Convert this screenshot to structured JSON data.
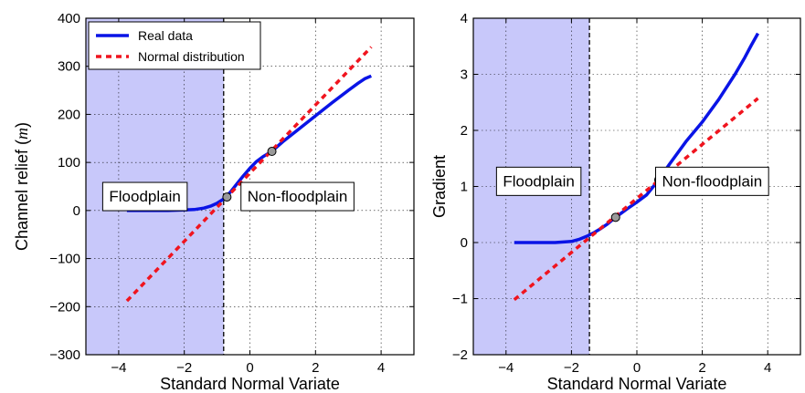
{
  "chart_data": [
    {
      "type": "line",
      "xlabel": "Standard Normal Variate",
      "ylabel": "Channel relief (m)",
      "ylabel_prefix": "Channel relief (",
      "ylabel_var": "m",
      "ylabel_suffix": ")",
      "xlim": [
        -5,
        5
      ],
      "ylim": [
        -300,
        400
      ],
      "xticks": [
        -4,
        -2,
        0,
        2,
        4
      ],
      "xtick_labels": [
        "−4",
        "−2",
        "0",
        "2",
        "4"
      ],
      "yticks": [
        -300,
        -200,
        -100,
        0,
        100,
        200,
        300,
        400
      ],
      "ytick_labels": [
        "−300",
        "−200",
        "−100",
        "0",
        "100",
        "200",
        "300",
        "400"
      ],
      "grid": true,
      "legend_placement": "top-left",
      "threshold_x": -0.8,
      "shaded_region": {
        "from": -5,
        "to": -0.8,
        "color": "#c8c8fa"
      },
      "regions": [
        {
          "label": "Floodplain",
          "x": -3.2,
          "y": 30
        },
        {
          "label": "Non-floodplain",
          "x": 1.45,
          "y": 30
        }
      ],
      "series": [
        {
          "name": "Real data",
          "style": "solid",
          "color": "#0a14e6",
          "x": [
            -3.75,
            -3.0,
            -2.5,
            -2.0,
            -1.7,
            -1.4,
            -1.2,
            -1.0,
            -0.8,
            -0.6,
            -0.4,
            -0.2,
            0.0,
            0.2,
            0.4,
            0.65,
            1.0,
            1.5,
            2.0,
            2.5,
            3.0,
            3.3,
            3.5,
            3.7
          ],
          "y": [
            0,
            0,
            0,
            1,
            2,
            5,
            9,
            15,
            24,
            38,
            55,
            72,
            88,
            102,
            112,
            122,
            143,
            170,
            197,
            224,
            250,
            265,
            274,
            280
          ]
        },
        {
          "name": "Normal distribution",
          "style": "dashed",
          "color": "#f0141e",
          "x": [
            -3.75,
            3.7
          ],
          "y": [
            -188,
            340
          ]
        }
      ],
      "markers": [
        {
          "x": -0.7,
          "y": 28
        },
        {
          "x": 0.67,
          "y": 123
        }
      ]
    },
    {
      "type": "line",
      "xlabel": "Standard Normal Variate",
      "ylabel": "Gradient",
      "xlim": [
        -5,
        5
      ],
      "ylim": [
        -2,
        4
      ],
      "xticks": [
        -4,
        -2,
        0,
        2,
        4
      ],
      "xtick_labels": [
        "−4",
        "−2",
        "0",
        "2",
        "4"
      ],
      "yticks": [
        -2,
        -1,
        0,
        1,
        2,
        3,
        4
      ],
      "ytick_labels": [
        "−2",
        "−1",
        "0",
        "1",
        "2",
        "3",
        "4"
      ],
      "grid": true,
      "threshold_x": -1.45,
      "shaded_region": {
        "from": -5,
        "to": -1.45,
        "color": "#c8c8fa"
      },
      "regions": [
        {
          "label": "Floodplain",
          "x": -3.0,
          "y": 1.1
        },
        {
          "label": "Non-floodplain",
          "x": 2.3,
          "y": 1.1
        }
      ],
      "series": [
        {
          "name": "Real data",
          "style": "solid",
          "color": "#0a14e6",
          "x": [
            -3.75,
            -3.0,
            -2.5,
            -2.0,
            -1.75,
            -1.5,
            -1.3,
            -1.1,
            -0.9,
            -0.65,
            -0.3,
            0.0,
            0.3,
            0.67,
            1.0,
            1.5,
            2.0,
            2.5,
            3.0,
            3.3,
            3.5,
            3.7
          ],
          "y": [
            0,
            0,
            0,
            0.02,
            0.06,
            0.12,
            0.18,
            0.25,
            0.33,
            0.45,
            0.6,
            0.72,
            0.85,
            1.12,
            1.4,
            1.8,
            2.15,
            2.55,
            3.0,
            3.3,
            3.52,
            3.73
          ]
        },
        {
          "name": "Normal distribution",
          "style": "dashed",
          "color": "#f0141e",
          "x": [
            -3.75,
            3.7
          ],
          "y": [
            -1.02,
            2.57
          ]
        }
      ],
      "markers": [
        {
          "x": -0.65,
          "y": 0.45
        },
        {
          "x": 0.67,
          "y": 1.12
        }
      ]
    }
  ]
}
